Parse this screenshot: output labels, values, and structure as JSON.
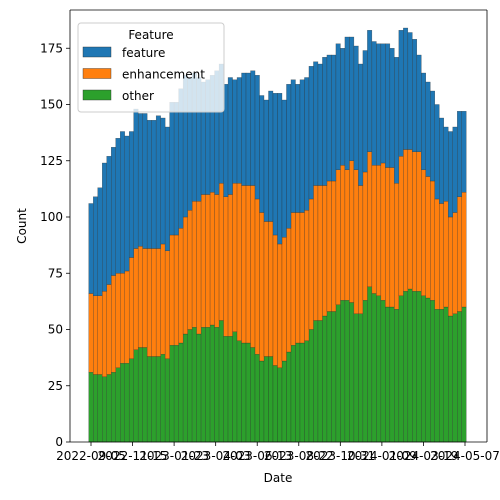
{
  "chart_data": {
    "type": "bar",
    "stacked": true,
    "xlabel": "Date",
    "ylabel": "Count",
    "ylim": [
      0,
      192
    ],
    "y_ticks": [
      0,
      25,
      50,
      75,
      100,
      125,
      150,
      175
    ],
    "x_tick_labels": [
      "2022-09-05",
      "2022-11-15",
      "2023-01-23",
      "2023-04-03",
      "2023-06-13",
      "2023-08-22",
      "2023-10-31",
      "2024-01-09",
      "2024-03-19",
      "2024-05-07"
    ],
    "grid": false,
    "legend": {
      "title": "Feature",
      "placement": "top-left",
      "entries": [
        "feature",
        "enhancement",
        "other"
      ]
    },
    "colors": {
      "feature": "#1f77b4",
      "enhancement": "#ff7f0e",
      "other": "#2ca02c"
    },
    "series": [
      {
        "name": "other",
        "values": [
          31,
          30,
          30,
          29,
          30,
          31,
          33,
          35,
          35,
          37,
          41,
          42,
          42,
          38,
          38,
          38,
          39,
          37,
          43,
          43,
          44,
          48,
          50,
          51,
          48,
          51,
          51,
          52,
          51,
          54,
          47,
          47,
          49,
          45,
          44,
          44,
          42,
          39,
          36,
          38,
          38,
          34,
          33,
          36,
          40,
          43,
          44,
          44,
          45,
          50,
          54,
          54,
          56,
          58,
          58,
          61,
          63,
          63,
          62,
          57,
          57,
          63,
          69,
          66,
          65,
          63,
          60,
          60,
          59,
          65,
          67,
          68,
          67,
          67,
          65,
          64,
          63,
          59,
          59,
          60,
          56,
          57,
          58,
          60
        ]
      },
      {
        "name": "enhancement",
        "values": [
          35,
          35,
          35,
          38,
          40,
          43,
          42,
          40,
          41,
          45,
          45,
          45,
          44,
          48,
          48,
          48,
          49,
          48,
          49,
          49,
          51,
          52,
          53,
          56,
          59,
          59,
          59,
          59,
          59,
          61,
          62,
          63,
          66,
          70,
          70,
          70,
          72,
          69,
          66,
          60,
          60,
          58,
          55,
          55,
          55,
          59,
          58,
          58,
          58,
          58,
          60,
          60,
          58,
          58,
          58,
          60,
          60,
          58,
          63,
          64,
          57,
          57,
          60,
          57,
          58,
          61,
          62,
          62,
          56,
          62,
          63,
          62,
          62,
          62,
          56,
          54,
          53,
          49,
          47,
          47,
          44,
          45,
          51,
          51
        ]
      },
      {
        "name": "feature",
        "values": [
          40,
          44,
          48,
          57,
          57,
          57,
          60,
          63,
          60,
          56,
          62,
          59,
          60,
          57,
          57,
          59,
          56,
          55,
          59,
          59,
          62,
          63,
          59,
          57,
          55,
          50,
          51,
          52,
          55,
          53,
          50,
          52,
          46,
          47,
          50,
          50,
          51,
          55,
          52,
          54,
          58,
          63,
          67,
          61,
          64,
          59,
          57,
          59,
          59,
          59,
          55,
          54,
          57,
          56,
          56,
          56,
          52,
          59,
          55,
          55,
          54,
          54,
          54,
          55,
          54,
          53,
          55,
          53,
          56,
          56,
          54,
          52,
          50,
          43,
          43,
          42,
          40,
          42,
          38,
          33,
          38,
          38,
          38,
          36
        ]
      }
    ]
  }
}
